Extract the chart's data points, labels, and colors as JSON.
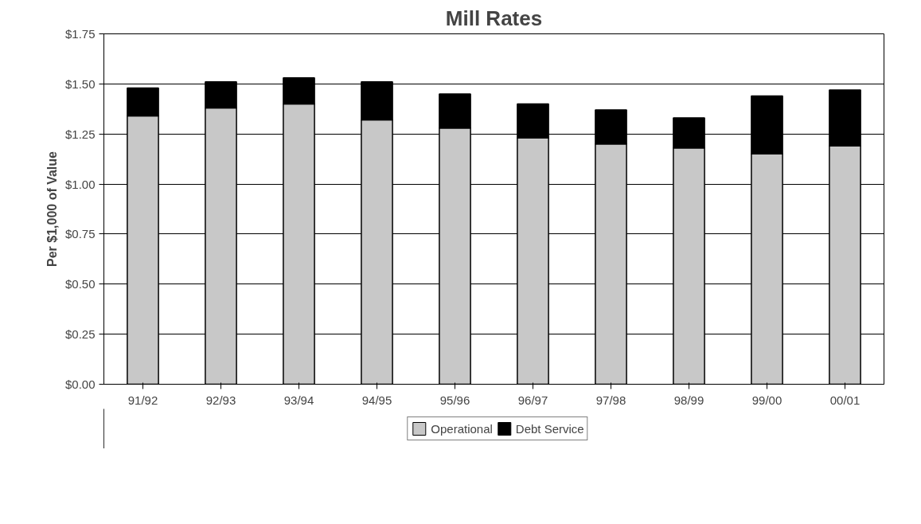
{
  "chart_data": {
    "type": "bar",
    "title": "Mill Rates",
    "ylabel": "Per $1,000 of Value",
    "categories": [
      "91/92",
      "92/93",
      "93/94",
      "94/95",
      "95/96",
      "96/97",
      "97/98",
      "98/99",
      "99/00",
      "00/01"
    ],
    "stacked": true,
    "series": [
      {
        "name": "Operational",
        "color": "#c8c8c8",
        "values": [
          1.34,
          1.38,
          1.4,
          1.32,
          1.28,
          1.23,
          1.2,
          1.18,
          1.15,
          1.19
        ]
      },
      {
        "name": "Debt Service",
        "color": "#000000",
        "values": [
          0.14,
          0.13,
          0.13,
          0.19,
          0.17,
          0.17,
          0.17,
          0.15,
          0.29,
          0.28
        ]
      }
    ],
    "ylim": [
      0,
      1.75
    ],
    "yticks": [
      {
        "value": 0,
        "label": "$0.00"
      },
      {
        "value": 0.25,
        "label": "$0.25"
      },
      {
        "value": 0.5,
        "label": "$0.50"
      },
      {
        "value": 0.75,
        "label": "$0.75"
      },
      {
        "value": 1.0,
        "label": "$1.00"
      },
      {
        "value": 1.25,
        "label": "$1.25"
      },
      {
        "value": 1.5,
        "label": "$1.50"
      },
      {
        "value": 1.75,
        "label": "$1.75"
      }
    ],
    "grid": "y",
    "legend": "bottom"
  }
}
